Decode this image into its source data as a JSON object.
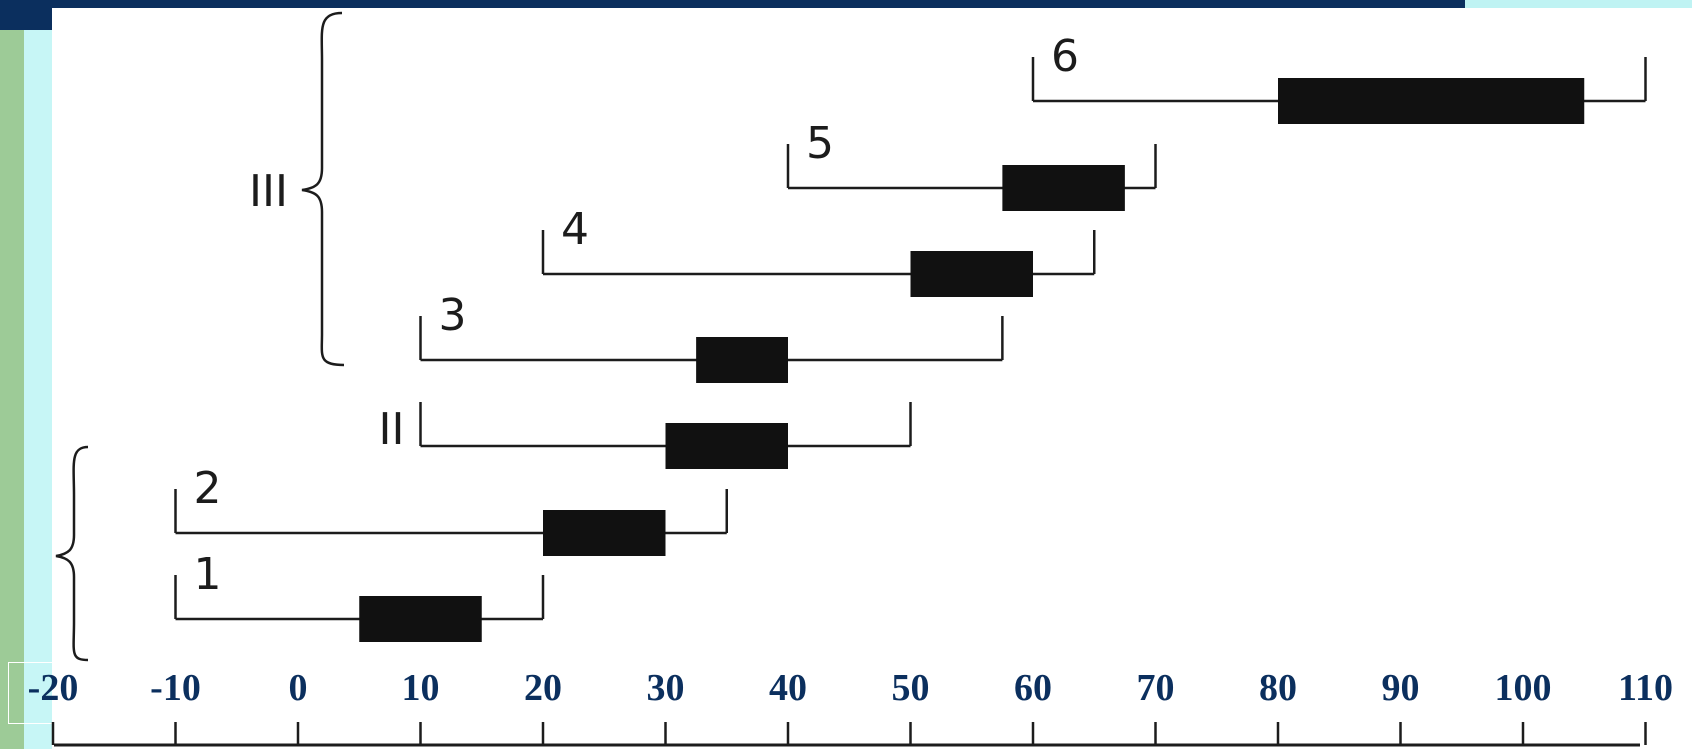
{
  "slide": {
    "colors": {
      "top_bar": "#0b2f5e",
      "left_green": "#9dcb97",
      "left_cyan": "#c7f6f6",
      "axis_labels": "#0b2f5e",
      "ink": "#1c1c1c"
    }
  },
  "axis": {
    "range": [
      -20,
      110
    ],
    "ticks": [
      {
        "value": -20,
        "label": "-20"
      },
      {
        "value": -10,
        "label": "-10"
      },
      {
        "value": 0,
        "label": "0"
      },
      {
        "value": 10,
        "label": "10"
      },
      {
        "value": 20,
        "label": "20"
      },
      {
        "value": 30,
        "label": "30"
      },
      {
        "value": 40,
        "label": "40"
      },
      {
        "value": 50,
        "label": "50"
      },
      {
        "value": 60,
        "label": "60"
      },
      {
        "value": 70,
        "label": "70"
      },
      {
        "value": 80,
        "label": "80"
      },
      {
        "value": 90,
        "label": "90"
      },
      {
        "value": 100,
        "label": "100"
      },
      {
        "value": 110,
        "label": "110"
      }
    ]
  },
  "rows": [
    {
      "label": "1",
      "range": [
        -10,
        20
      ],
      "box": [
        5,
        15
      ]
    },
    {
      "label": "2",
      "range": [
        -10,
        35
      ],
      "box": [
        20,
        30
      ]
    },
    {
      "label": "II",
      "range": [
        10,
        50
      ],
      "box": [
        30,
        40
      ]
    },
    {
      "label": "3",
      "range": [
        10,
        57.5
      ],
      "box": [
        32.5,
        40
      ]
    },
    {
      "label": "4",
      "range": [
        20,
        65
      ],
      "box": [
        50,
        60
      ]
    },
    {
      "label": "5",
      "range": [
        40,
        70
      ],
      "box": [
        57.5,
        67.5
      ]
    },
    {
      "label": "6",
      "range": [
        60,
        110
      ],
      "box": [
        80,
        105
      ]
    }
  ],
  "groups": [
    {
      "label": "III",
      "rows": [
        "3",
        "4",
        "5",
        "6"
      ]
    },
    {
      "label": "",
      "rows": [
        "1",
        "2"
      ]
    }
  ]
}
